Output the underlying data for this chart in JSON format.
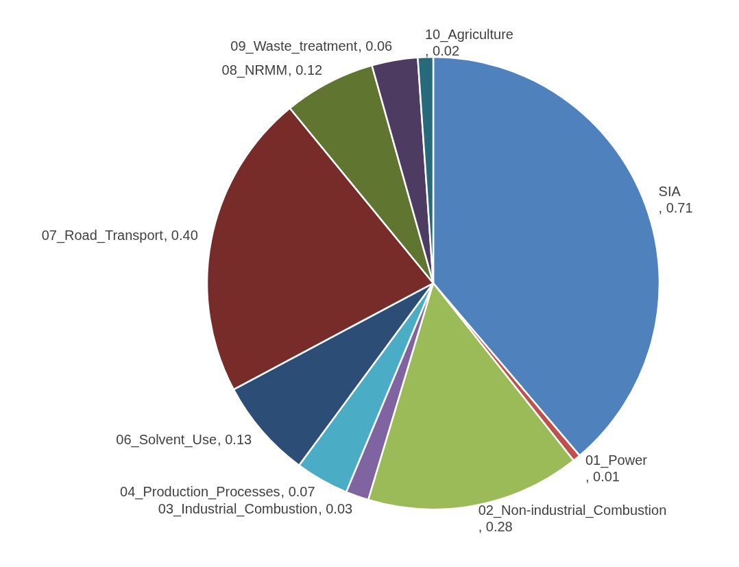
{
  "chart_data": {
    "type": "pie",
    "categories": [
      "SIA",
      "01_Power",
      "02_Non-industrial_Combustion",
      "03_Industrial_Combustion",
      "04_Production_Processes",
      "06_Solvent_Use",
      "07_Road_Transport",
      "08_NRMM",
      "09_Waste_treatment",
      "10_Agriculture"
    ],
    "values": [
      0.71,
      0.01,
      0.28,
      0.03,
      0.07,
      0.13,
      0.4,
      0.12,
      0.06,
      0.02
    ],
    "value_labels": [
      ", 0.71",
      ", 0.01",
      ", 0.28",
      ", 0.03",
      ", 0.07",
      ", 0.13",
      ", 0.40",
      ", 0.12",
      ", 0.06",
      ", 0.02"
    ],
    "colors": [
      "#4f81bd",
      "#c0504d",
      "#9bbb59",
      "#8064a2",
      "#4bacc6",
      "#2c4d75",
      "#772c2a",
      "#5f7530",
      "#4d3b62",
      "#276a7c"
    ]
  }
}
